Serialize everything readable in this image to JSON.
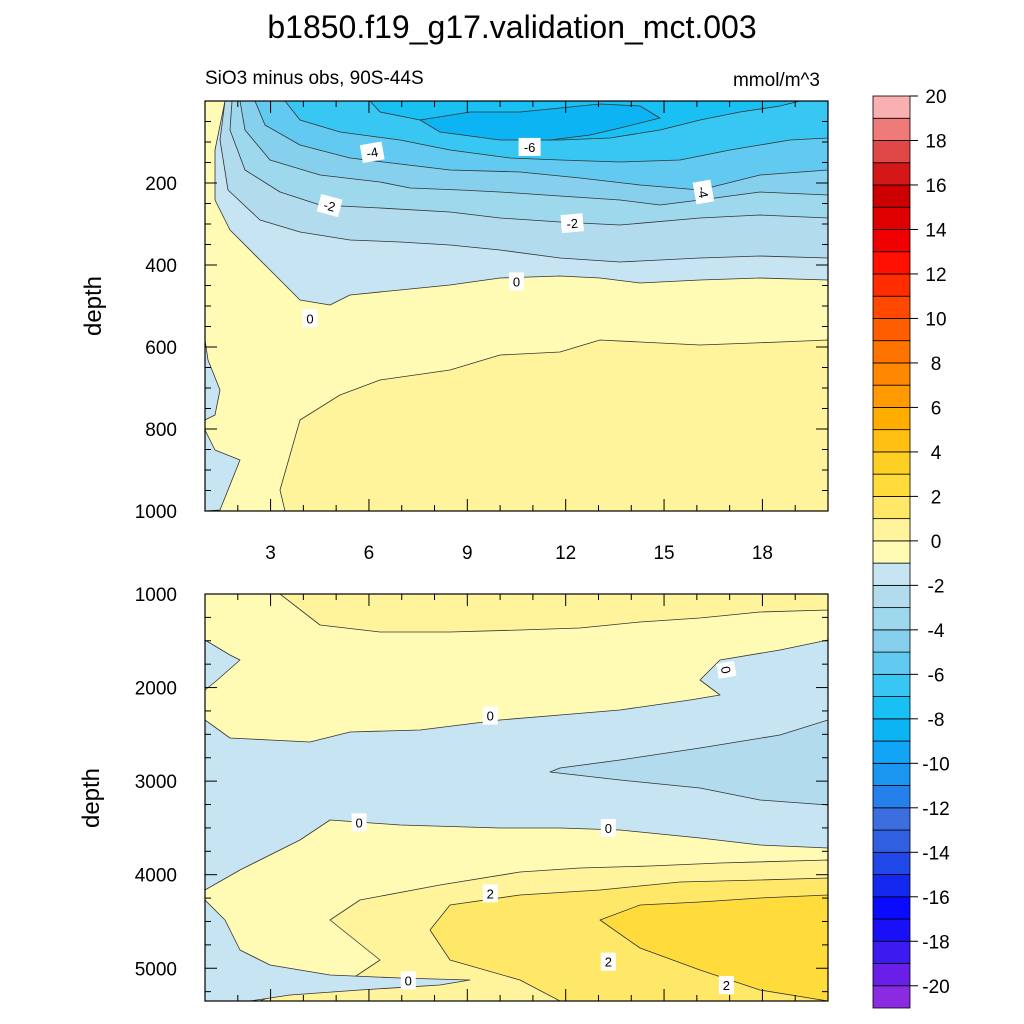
{
  "chart_data": {
    "type": "contour",
    "title": "b1850.f19_g17.validation_mct.003",
    "left_subtitle": "SiO3 minus obs, 90S-44S",
    "right_subtitle": "mmol/m^3",
    "xlim": [
      1,
      20
    ],
    "x_ticks": [
      "3",
      "6",
      "9",
      "12",
      "15",
      "18"
    ],
    "x_tick_values": [
      3,
      6,
      9,
      12,
      15,
      18
    ],
    "ylabel": "depth",
    "upper_panel": {
      "ylim": [
        0,
        1000
      ],
      "y_ticks": [
        "200",
        "400",
        "600",
        "800",
        "1000"
      ],
      "y_tick_values": [
        200,
        400,
        600,
        800,
        1000
      ],
      "contour_labels": [
        {
          "text": "-4",
          "x": 6.1,
          "y": 125,
          "rotate": -10
        },
        {
          "text": "-6",
          "x": 10.9,
          "y": 112,
          "rotate": 0
        },
        {
          "text": "-2",
          "x": 4.8,
          "y": 255,
          "rotate": 15
        },
        {
          "text": "-4",
          "x": 16.2,
          "y": 222,
          "rotate": 80
        },
        {
          "text": "-2",
          "x": 12.2,
          "y": 298,
          "rotate": -5
        },
        {
          "text": "0",
          "x": 10.5,
          "y": 440,
          "rotate": 0
        },
        {
          "text": "0",
          "x": 4.2,
          "y": 530,
          "rotate": 0
        }
      ]
    },
    "lower_panel": {
      "ylim": [
        1000,
        5350
      ],
      "y_ticks": [
        "1000",
        "2000",
        "3000",
        "4000",
        "5000"
      ],
      "y_tick_values": [
        1000,
        2000,
        3000,
        4000,
        5000
      ],
      "contour_labels": [
        {
          "text": "0",
          "x": 16.9,
          "y": 1810,
          "rotate": 80
        },
        {
          "text": "0",
          "x": 9.7,
          "y": 2300,
          "rotate": 0
        },
        {
          "text": "0",
          "x": 5.7,
          "y": 3440,
          "rotate": 0
        },
        {
          "text": "0",
          "x": 13.3,
          "y": 3500,
          "rotate": 0
        },
        {
          "text": "2",
          "x": 9.7,
          "y": 4200,
          "rotate": 0
        },
        {
          "text": "2",
          "x": 13.3,
          "y": 4930,
          "rotate": 0
        },
        {
          "text": "0",
          "x": 7.2,
          "y": 5130,
          "rotate": 0
        },
        {
          "text": "2",
          "x": 16.9,
          "y": 5180,
          "rotate": 0
        }
      ]
    },
    "colorbar": {
      "levels": [
        -20,
        -19,
        -18,
        -17,
        -16,
        -15,
        -14,
        -13,
        -12,
        -11,
        -10,
        -9,
        -8,
        -7,
        -6,
        -5,
        -4,
        -3,
        -2,
        -1,
        0,
        1,
        2,
        3,
        4,
        5,
        6,
        7,
        8,
        9,
        10,
        11,
        12,
        13,
        14,
        15,
        16,
        17,
        18,
        19,
        20
      ],
      "labels": [
        "-20",
        "-18",
        "-16",
        "-14",
        "-12",
        "-10",
        "-8",
        "-6",
        "-4",
        "-2",
        "0",
        "2",
        "4",
        "6",
        "8",
        "10",
        "12",
        "14",
        "16",
        "18",
        "20"
      ],
      "label_values": [
        -20,
        -18,
        -16,
        -14,
        -12,
        -10,
        -8,
        -6,
        -4,
        -2,
        0,
        2,
        4,
        6,
        8,
        10,
        12,
        14,
        16,
        18,
        20
      ],
      "colors": [
        "#8a2be2",
        "#6a1fe8",
        "#3d1bf0",
        "#1a10f8",
        "#0a0aff",
        "#1528f0",
        "#2048e8",
        "#3060e0",
        "#3c6ee0",
        "#2580ec",
        "#1a96f0",
        "#12a4f6",
        "#0cb4f4",
        "#18c0f4",
        "#38c6f2",
        "#62caf0",
        "#86d0ee",
        "#9ed8ec",
        "#b2dcee",
        "#c6e4f2",
        "#fffbb4",
        "#fff49c",
        "#ffe868",
        "#ffdc3c",
        "#ffd024",
        "#ffc012",
        "#ffae00",
        "#ff9a00",
        "#ff8800",
        "#ff7400",
        "#ff5e00",
        "#ff4800",
        "#ff2c00",
        "#ff1000",
        "#f00000",
        "#e00000",
        "#cc0000",
        "#d41818",
        "#e04848",
        "#ee7a7a",
        "#f8b0b0"
      ]
    },
    "fill_colors": {
      "lvl_m7": "#0cb4f4",
      "lvl_m6": "#18c0f4",
      "lvl_m5": "#38c6f2",
      "lvl_m4": "#62caf0",
      "lvl_m3": "#86d0ee",
      "lvl_m2": "#9ed8ec",
      "lvl_m1": "#b2dcee",
      "lvl_m0": "#c6e4f2",
      "lvl_p0": "#fffbb4",
      "lvl_p1": "#fff49c",
      "lvl_p2": "#ffe868",
      "lvl_p3": "#ffdc3c"
    }
  }
}
